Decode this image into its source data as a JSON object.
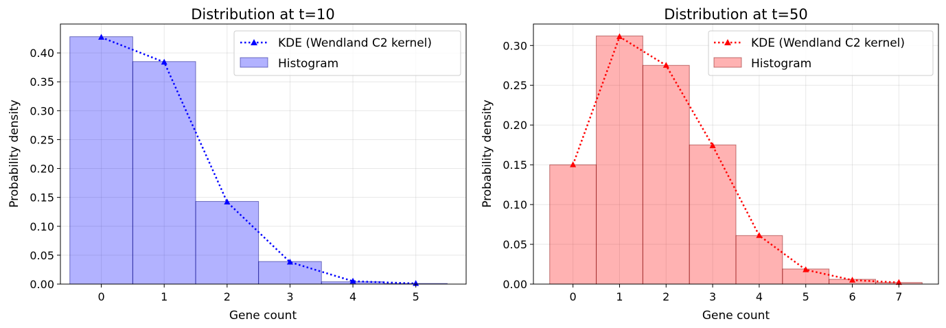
{
  "chart_data": [
    {
      "type": "bar",
      "title": "Distribution at t=10",
      "xlabel": "Gene count",
      "ylabel": "Probability density",
      "xlim": [
        -0.65,
        5.8
      ],
      "ylim": [
        0,
        0.45
      ],
      "xticks": [
        0,
        1,
        2,
        3,
        4,
        5
      ],
      "yticks": [
        0.0,
        0.05,
        0.1,
        0.15,
        0.2,
        0.25,
        0.3,
        0.35,
        0.4
      ],
      "ytick_labels": [
        "0.00",
        "0.05",
        "0.10",
        "0.15",
        "0.20",
        "0.25",
        "0.30",
        "0.35",
        "0.40"
      ],
      "grid": true,
      "legend_position": "top-right",
      "series": [
        {
          "name": "KDE (Wendland C2 kernel)",
          "kind": "line",
          "style": "dotted",
          "marker": "triangle",
          "color": "#0000ff",
          "x": [
            0,
            1,
            2,
            3,
            4,
            5
          ],
          "values": [
            0.427,
            0.384,
            0.142,
            0.038,
            0.005,
            0.001
          ]
        },
        {
          "name": "Histogram",
          "kind": "bar",
          "color": "#0000ff",
          "categories": [
            0,
            1,
            2,
            3,
            4,
            5
          ],
          "values": [
            0.428,
            0.385,
            0.143,
            0.039,
            0.004,
            0.001
          ]
        }
      ]
    },
    {
      "type": "bar",
      "title": "Distribution at t=50",
      "xlabel": "Gene count",
      "ylabel": "Probability density",
      "xlim": [
        -0.85,
        7.85
      ],
      "ylim": [
        0,
        0.327
      ],
      "xticks": [
        0,
        1,
        2,
        3,
        4,
        5,
        6,
        7
      ],
      "yticks": [
        0.0,
        0.05,
        0.1,
        0.15,
        0.2,
        0.25,
        0.3
      ],
      "ytick_labels": [
        "0.00",
        "0.05",
        "0.10",
        "0.15",
        "0.20",
        "0.25",
        "0.30"
      ],
      "grid": true,
      "legend_position": "top-right",
      "series": [
        {
          "name": "KDE (Wendland C2 kernel)",
          "kind": "line",
          "style": "dotted",
          "marker": "triangle",
          "color": "#ff0000",
          "x": [
            0,
            1,
            2,
            3,
            4,
            5,
            6,
            7
          ],
          "values": [
            0.15,
            0.311,
            0.275,
            0.174,
            0.061,
            0.018,
            0.005,
            0.002
          ]
        },
        {
          "name": "Histogram",
          "kind": "bar",
          "color": "#ff0000",
          "categories": [
            0,
            1,
            2,
            3,
            4,
            5,
            6,
            7
          ],
          "values": [
            0.15,
            0.312,
            0.275,
            0.175,
            0.061,
            0.019,
            0.006,
            0.002
          ]
        }
      ]
    }
  ]
}
